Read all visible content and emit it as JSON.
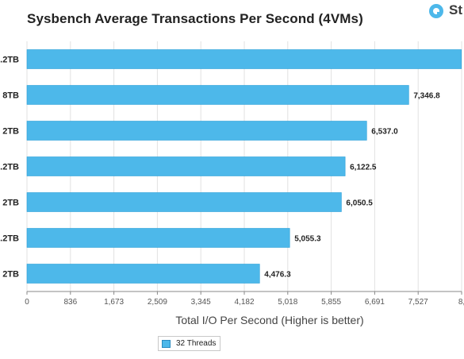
{
  "title": "Sysbench Average Transactions Per Second (4VMs)",
  "logo": {
    "text": "St",
    "icon": "logo-circle-icon",
    "color": "#4db8ea"
  },
  "colors": {
    "bar": "#4db8ea",
    "bar_stroke": "#2a9fd8",
    "grid": "#e2e2e2",
    "axis": "#888888"
  },
  "chart_data": {
    "type": "bar",
    "orientation": "horizontal",
    "title": "Sysbench Average Transactions Per Second (4VMs)",
    "xlabel": "Total I/O Per Second (Higher is better)",
    "ylabel": "",
    "categories": [
      ".2TB",
      "8TB",
      "2TB",
      ".2TB",
      "2TB",
      ".2TB",
      "2TB"
    ],
    "series": [
      {
        "name": "32 Threads",
        "values": [
          8360,
          7346.8,
          6537.0,
          6122.5,
          6050.5,
          5055.3,
          4476.3
        ]
      }
    ],
    "data_labels": [
      "",
      "7,346.8",
      "6,537.0",
      "6,122.5",
      "6,050.5",
      "5,055.3",
      "4,476.3"
    ],
    "xlim": [
      0,
      8364
    ],
    "xticks": [
      "0",
      "836",
      "1,673",
      "2,509",
      "3,345",
      "4,182",
      "5,018",
      "5,855",
      "6,691",
      "7,527",
      "8,"
    ],
    "grid": true,
    "legend": "bottom"
  }
}
